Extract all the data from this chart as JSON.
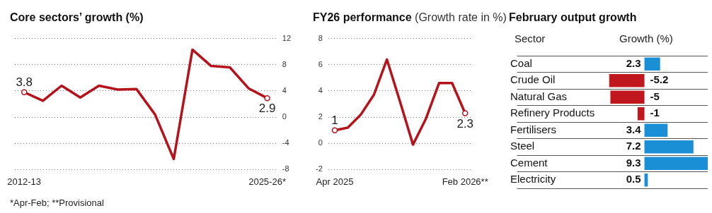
{
  "chart_data": [
    {
      "type": "line",
      "title": "Core sectors’ growth (%)",
      "categories": [
        "2012-13",
        null,
        null,
        null,
        null,
        null,
        null,
        null,
        null,
        null,
        null,
        null,
        null,
        "2025-26*"
      ],
      "series": [
        {
          "color": "#b5121b",
          "values": [
            3.8,
            2.5,
            4.8,
            3.0,
            4.8,
            4.2,
            4.3,
            0.4,
            -6.4,
            10.3,
            7.8,
            7.6,
            4.4,
            2.9
          ],
          "value_labels": [
            "3.8",
            null,
            null,
            null,
            null,
            null,
            null,
            null,
            null,
            null,
            null,
            null,
            null,
            "2.9"
          ]
        }
      ],
      "ylim": [
        -8,
        12
      ],
      "yticks": [
        -8,
        -4,
        0,
        4,
        8,
        12
      ],
      "grid": "y",
      "legend": false,
      "annotations": [
        "*Apr-Feb; **Provisional"
      ]
    },
    {
      "type": "line",
      "title": "FY26 performance",
      "subtitle": "(Growth rate in %)",
      "categories": [
        "Apr 2025",
        null,
        null,
        null,
        null,
        null,
        null,
        null,
        null,
        null,
        "Feb 2026**"
      ],
      "series": [
        {
          "color": "#b5121b",
          "values": [
            1,
            1.2,
            2.2,
            3.7,
            6.4,
            3.2,
            -0.1,
            1.9,
            4.6,
            4.6,
            2.3
          ],
          "value_labels": [
            "1",
            null,
            null,
            null,
            null,
            null,
            null,
            null,
            null,
            null,
            "2.3"
          ]
        }
      ],
      "ylim": [
        -2,
        8
      ],
      "yticks": [
        -2,
        0,
        2,
        4,
        6,
        8
      ],
      "grid": "y",
      "legend": false
    },
    {
      "type": "bar",
      "orientation": "horizontal",
      "title": "February output growth",
      "ylabel": "Sector",
      "xlabel": "Growth (%)",
      "categories": [
        "Coal",
        "Crude Oil",
        "Natural Gas",
        "Refinery Products",
        "Fertilisers",
        "Steel",
        "Cement",
        "Electricity"
      ],
      "values": [
        2.3,
        -5.2,
        -5,
        -1,
        3.4,
        7.2,
        9.3,
        0.5
      ],
      "colors": [
        "#1a8fd6",
        "#c0171f",
        "#c0171f",
        "#c0171f",
        "#1a8fd6",
        "#1a8fd6",
        "#1a8fd6",
        "#1a8fd6"
      ],
      "data_labels": true,
      "grid": "y",
      "legend": false
    }
  ]
}
